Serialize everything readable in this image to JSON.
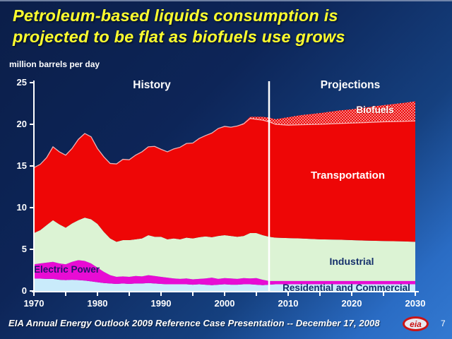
{
  "slide": {
    "title_line1": "Petroleum-based liquids consumption is",
    "title_line2": "projected to be flat as biofuels use grows",
    "footer": "EIA Annual Energy Outlook 2009 Reference Case Presentation -- December 17, 2008",
    "page_number": "7",
    "logo_text": "eia"
  },
  "labels": {
    "history": "History",
    "projections": "Projections"
  },
  "chart_data": {
    "type": "area",
    "stacked": true,
    "title": "Petroleum-based liquids consumption is projected to be flat as biofuels use grows",
    "ylabel": "million barrels per day",
    "xlabel": "",
    "xlim": [
      1970,
      2030
    ],
    "ylim": [
      0,
      25
    ],
    "y_ticks": [
      0,
      5,
      10,
      15,
      20,
      25
    ],
    "x_tick_labels": [
      1970,
      1980,
      1990,
      2000,
      2010,
      2020,
      2030
    ],
    "x_minor_tick_step": 5,
    "history_end_year": 2007,
    "grid": false,
    "legend_position": "inline-labels",
    "divider_color": "#ffffff",
    "axis_color": "#ffffff",
    "x": [
      1970,
      1971,
      1972,
      1973,
      1974,
      1975,
      1976,
      1977,
      1978,
      1979,
      1980,
      1981,
      1982,
      1983,
      1984,
      1985,
      1986,
      1987,
      1988,
      1989,
      1990,
      1991,
      1992,
      1993,
      1994,
      1995,
      1996,
      1997,
      1998,
      1999,
      2000,
      2001,
      2002,
      2003,
      2004,
      2005,
      2006,
      2007,
      2008,
      2010,
      2012,
      2015,
      2018,
      2020,
      2022,
      2025,
      2028,
      2030
    ],
    "series": [
      {
        "name": "Residential and Commercial",
        "color": "#c9ebfb",
        "values": [
          1.5,
          1.48,
          1.45,
          1.45,
          1.35,
          1.3,
          1.35,
          1.3,
          1.25,
          1.15,
          1.05,
          0.95,
          0.9,
          0.85,
          0.9,
          0.85,
          0.9,
          0.9,
          0.95,
          0.9,
          0.85,
          0.8,
          0.8,
          0.8,
          0.8,
          0.75,
          0.8,
          0.75,
          0.7,
          0.75,
          0.8,
          0.75,
          0.75,
          0.8,
          0.8,
          0.75,
          0.7,
          0.75,
          0.8,
          0.8,
          0.8,
          0.8,
          0.8,
          0.8,
          0.8,
          0.8,
          0.8,
          0.8
        ]
      },
      {
        "name": "Electric Power",
        "color": "#e80cd4",
        "values": [
          1.7,
          1.82,
          1.95,
          2.05,
          1.95,
          1.9,
          2.15,
          2.4,
          2.35,
          2.15,
          1.75,
          1.35,
          1.0,
          0.85,
          0.85,
          0.85,
          0.9,
          0.85,
          0.95,
          0.9,
          0.85,
          0.8,
          0.7,
          0.65,
          0.7,
          0.65,
          0.65,
          0.75,
          0.9,
          0.7,
          0.75,
          0.75,
          0.7,
          0.75,
          0.7,
          0.8,
          0.65,
          0.45,
          0.4,
          0.4,
          0.4,
          0.4,
          0.4,
          0.4,
          0.4,
          0.4,
          0.4,
          0.4
        ]
      },
      {
        "name": "Industrial",
        "color": "#dcf3d4",
        "values": [
          3.75,
          4.0,
          4.5,
          5.0,
          4.7,
          4.4,
          4.6,
          4.8,
          5.2,
          5.3,
          5.25,
          4.8,
          4.4,
          4.2,
          4.35,
          4.4,
          4.4,
          4.55,
          4.8,
          4.7,
          4.8,
          4.6,
          4.8,
          4.75,
          4.9,
          4.9,
          5.0,
          5.05,
          4.85,
          5.15,
          5.15,
          5.1,
          5.05,
          5.05,
          5.45,
          5.4,
          5.35,
          5.3,
          5.2,
          5.15,
          5.1,
          5.0,
          4.95,
          4.9,
          4.85,
          4.8,
          4.75,
          4.7
        ]
      },
      {
        "name": "Transportation",
        "color": "#ee0606",
        "values": [
          7.85,
          7.9,
          8.1,
          8.8,
          8.7,
          8.7,
          9.0,
          9.7,
          10.1,
          9.9,
          9.05,
          9.0,
          9.0,
          9.35,
          9.7,
          9.65,
          10.1,
          10.4,
          10.6,
          10.85,
          10.5,
          10.5,
          10.75,
          11.05,
          11.3,
          11.45,
          11.85,
          12.1,
          12.5,
          12.9,
          13.05,
          13.05,
          13.3,
          13.45,
          13.75,
          13.65,
          13.8,
          13.8,
          13.6,
          13.55,
          13.65,
          13.8,
          13.95,
          14.05,
          14.15,
          14.3,
          14.4,
          14.5
        ]
      },
      {
        "name": "Biofuels",
        "color": "#ee0606",
        "pattern": "white-dots",
        "values": [
          0,
          0,
          0,
          0,
          0,
          0,
          0,
          0,
          0,
          0,
          0,
          0,
          0,
          0,
          0,
          0,
          0,
          0,
          0,
          0,
          0,
          0,
          0,
          0,
          0,
          0,
          0,
          0,
          0,
          0,
          0,
          0,
          0,
          0.1,
          0.2,
          0.3,
          0.4,
          0.5,
          0.6,
          0.95,
          1.15,
          1.35,
          1.55,
          1.65,
          1.8,
          2.0,
          2.2,
          2.35
        ]
      }
    ]
  }
}
